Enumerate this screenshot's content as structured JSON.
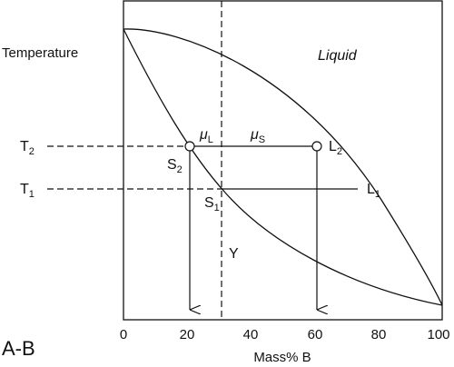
{
  "axis": {
    "y_label": "Temperature",
    "x_label": "Mass% B",
    "x_ticks": [
      "0",
      "20",
      "40",
      "60",
      "80",
      "100"
    ],
    "x_min": 0,
    "x_max": 100
  },
  "system_label": "A-B",
  "regions": {
    "liquid": "Liquid"
  },
  "temperatures": [
    {
      "base": "T",
      "sub": "2"
    },
    {
      "base": "T",
      "sub": "1"
    }
  ],
  "points": {
    "S2": {
      "base": "S",
      "sub": "2",
      "x": 21
    },
    "L2": {
      "base": "L",
      "sub": "2",
      "x": 61
    },
    "S1": {
      "base": "S",
      "sub": "1",
      "x": 31
    },
    "L1": {
      "base": "L",
      "sub": "1",
      "x": 74
    }
  },
  "chem_potentials": [
    {
      "base": "μ",
      "sub": "L"
    },
    {
      "base": "μ",
      "sub": "S"
    }
  ],
  "alloy": {
    "label": "Y",
    "x": 31
  },
  "colors": {
    "line": "#111111",
    "background": "#ffffff"
  }
}
